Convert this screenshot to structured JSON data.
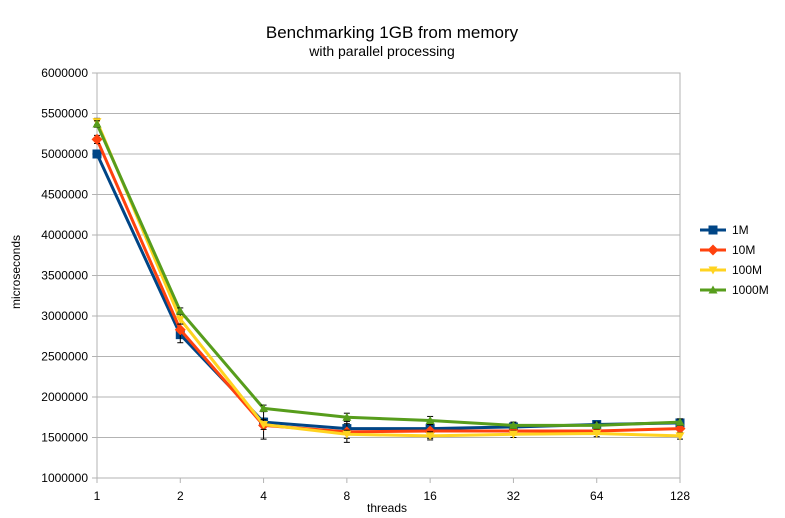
{
  "chart_data": {
    "type": "line",
    "title": "Benchmarking 1GB from memory",
    "subtitle": "with parallel processing",
    "xlabel": "threads",
    "ylabel": "microseconds",
    "categories": [
      "1",
      "2",
      "4",
      "8",
      "16",
      "32",
      "64",
      "128"
    ],
    "ylim": [
      1000000,
      6000000
    ],
    "yticks": [
      1000000,
      1500000,
      2000000,
      2500000,
      3000000,
      3500000,
      4000000,
      4500000,
      5000000,
      5500000,
      6000000
    ],
    "grid": true,
    "legend_position": "right",
    "series": [
      {
        "name": "1M",
        "color": "#004586",
        "marker": "square",
        "values": [
          5000000,
          2770000,
          1690000,
          1610000,
          1610000,
          1630000,
          1660000,
          1680000
        ],
        "errors": [
          30000,
          40000,
          50000,
          60000,
          60000,
          40000,
          40000,
          40000
        ]
      },
      {
        "name": "10M",
        "color": "#ff420e",
        "marker": "diamond",
        "values": [
          5180000,
          2830000,
          1650000,
          1570000,
          1580000,
          1580000,
          1580000,
          1610000
        ],
        "errors": [
          50000,
          160000,
          170000,
          130000,
          90000,
          50000,
          40000,
          30000
        ]
      },
      {
        "name": "100M",
        "color": "#ffd320",
        "marker": "triangle-down",
        "values": [
          5400000,
          2960000,
          1660000,
          1540000,
          1520000,
          1540000,
          1550000,
          1520000
        ],
        "errors": [
          40000,
          60000,
          60000,
          50000,
          50000,
          40000,
          40000,
          40000
        ]
      },
      {
        "name": "1000M",
        "color": "#579d1c",
        "marker": "triangle-up",
        "values": [
          5370000,
          3060000,
          1860000,
          1750000,
          1710000,
          1650000,
          1650000,
          1690000
        ],
        "errors": [
          40000,
          40000,
          40000,
          50000,
          50000,
          40000,
          40000,
          40000
        ]
      }
    ]
  }
}
